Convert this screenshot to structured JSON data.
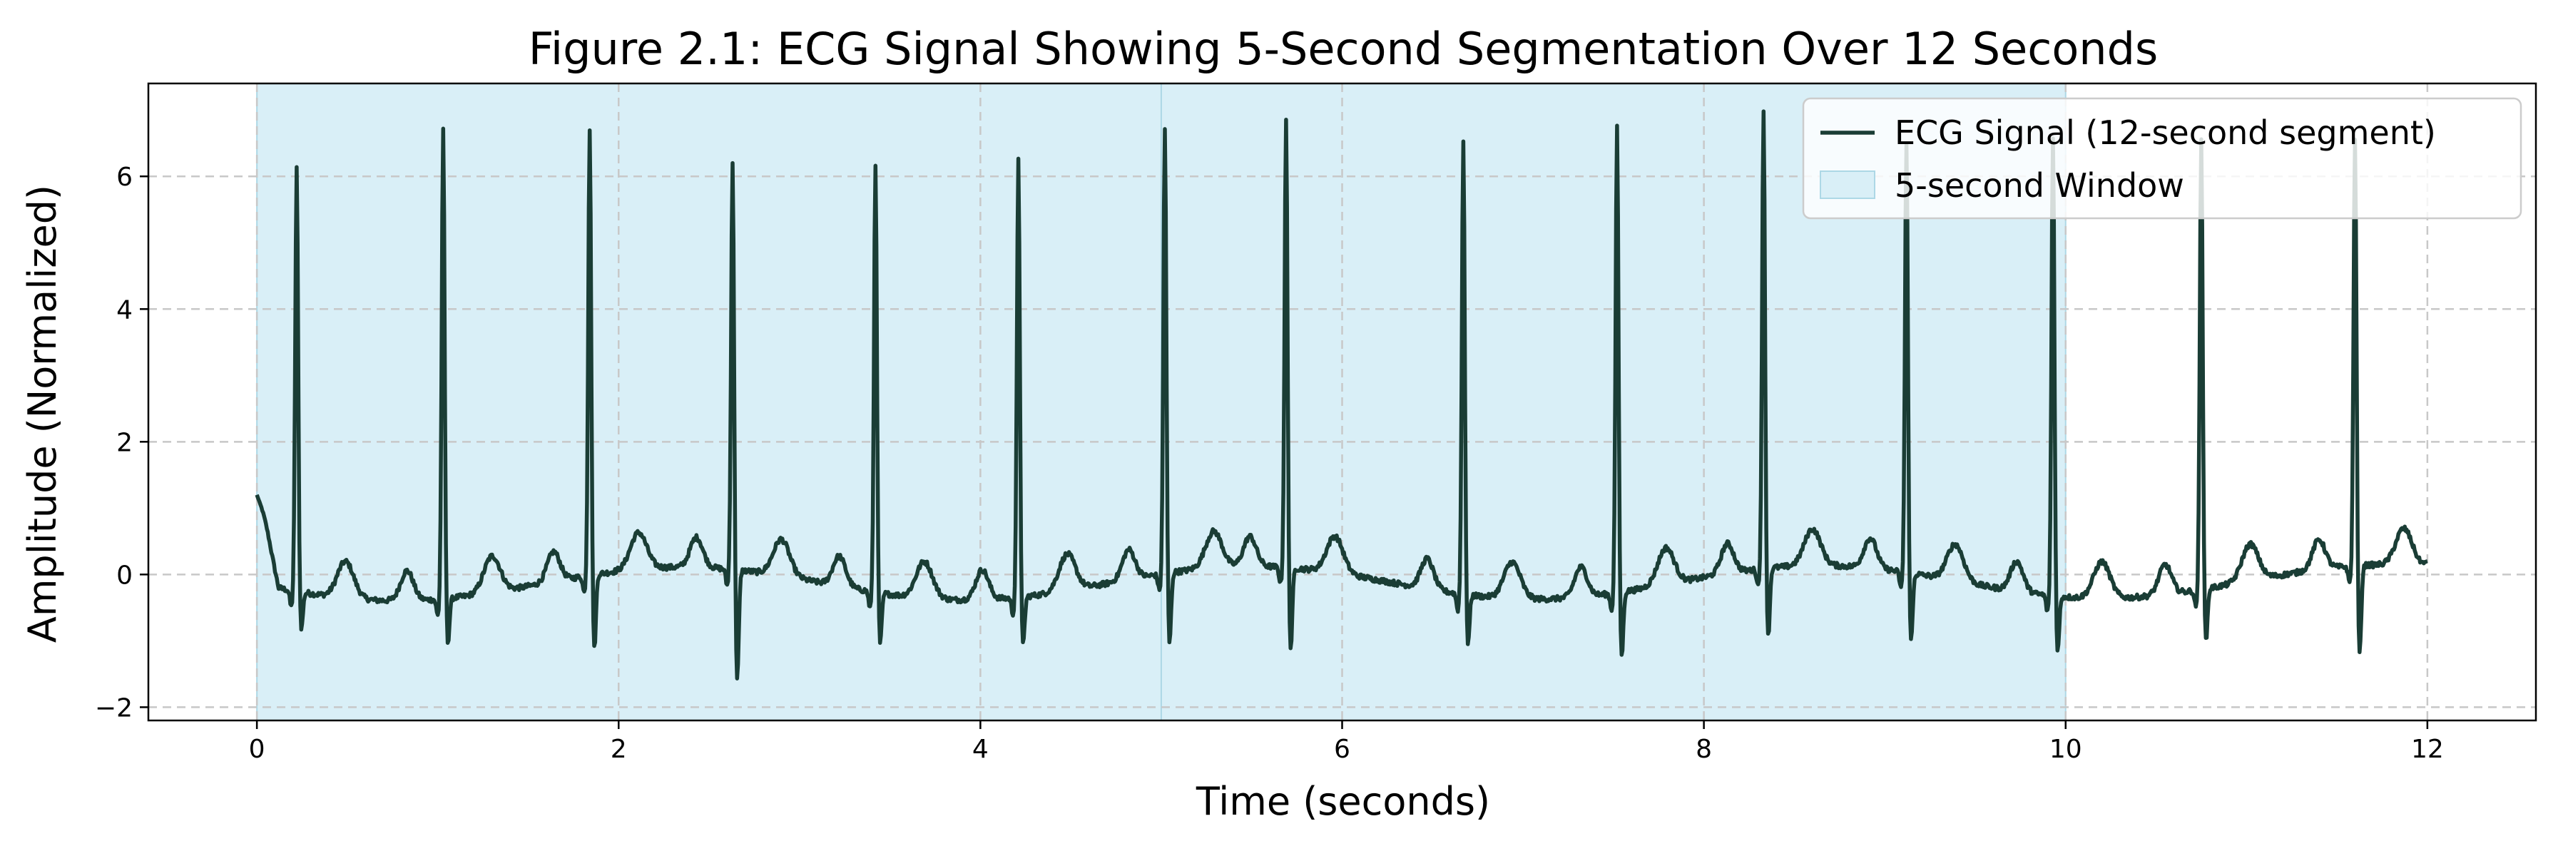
{
  "chart_data": {
    "type": "line",
    "title": "Figure 2.1: ECG Signal Showing 5-Second Segmentation Over 12 Seconds",
    "xlabel": "Time (seconds)",
    "ylabel": "Amplitude (Normalized)",
    "xlim": [
      -0.6,
      12.6
    ],
    "ylim": [
      -2.2,
      7.4
    ],
    "xticks": [
      0,
      2,
      4,
      6,
      8,
      10,
      12
    ],
    "yticks": [
      -2,
      0,
      2,
      4,
      6
    ],
    "grid": true,
    "legend_position": "top-right",
    "colors": {
      "signal": "#1a3d35",
      "window_fill": "#d9eff7",
      "window_edge": "#add8e6",
      "grid": "#c8c8c8"
    },
    "series": [
      {
        "name": "ECG Signal (12-second segment)",
        "kind": "line",
        "start_value": 1.2,
        "end_value": 0.2,
        "r_peaks": [
          {
            "t": 0.22,
            "amp": 6.15
          },
          {
            "t": 1.03,
            "amp": 6.7
          },
          {
            "t": 1.84,
            "amp": 6.75
          },
          {
            "t": 2.63,
            "amp": 6.25
          },
          {
            "t": 3.42,
            "amp": 6.2
          },
          {
            "t": 4.21,
            "amp": 6.25
          },
          {
            "t": 5.02,
            "amp": 6.75
          },
          {
            "t": 5.69,
            "amp": 6.85
          },
          {
            "t": 6.67,
            "amp": 6.55
          },
          {
            "t": 7.52,
            "amp": 6.75
          },
          {
            "t": 8.33,
            "amp": 7.0
          },
          {
            "t": 9.12,
            "amp": 6.5
          },
          {
            "t": 9.93,
            "amp": 6.6
          },
          {
            "t": 10.75,
            "amp": 6.55
          },
          {
            "t": 11.6,
            "amp": 6.6
          }
        ],
        "s_troughs": [
          {
            "t": 0.2,
            "amp": -0.9
          },
          {
            "t": 1.0,
            "amp": -1.15
          },
          {
            "t": 1.81,
            "amp": -1.3
          },
          {
            "t": 2.61,
            "amp": -1.8
          },
          {
            "t": 3.4,
            "amp": -1.15
          },
          {
            "t": 4.19,
            "amp": -1.2
          },
          {
            "t": 5.0,
            "amp": -1.2
          },
          {
            "t": 5.67,
            "amp": -1.3
          },
          {
            "t": 6.65,
            "amp": -1.15
          },
          {
            "t": 7.5,
            "amp": -1.4
          },
          {
            "t": 8.31,
            "amp": -1.1
          },
          {
            "t": 9.1,
            "amp": -1.15
          },
          {
            "t": 9.91,
            "amp": -1.3
          },
          {
            "t": 10.73,
            "amp": -1.15
          },
          {
            "t": 11.58,
            "amp": -1.4
          }
        ]
      }
    ],
    "windows": [
      {
        "name": "5-second Window",
        "start": 0,
        "end": 5
      },
      {
        "name": "5-second Window",
        "start": 5,
        "end": 10
      }
    ],
    "legend": [
      {
        "label": "ECG Signal (12-second segment)",
        "kind": "line"
      },
      {
        "label": "5-second Window",
        "kind": "patch"
      }
    ]
  }
}
